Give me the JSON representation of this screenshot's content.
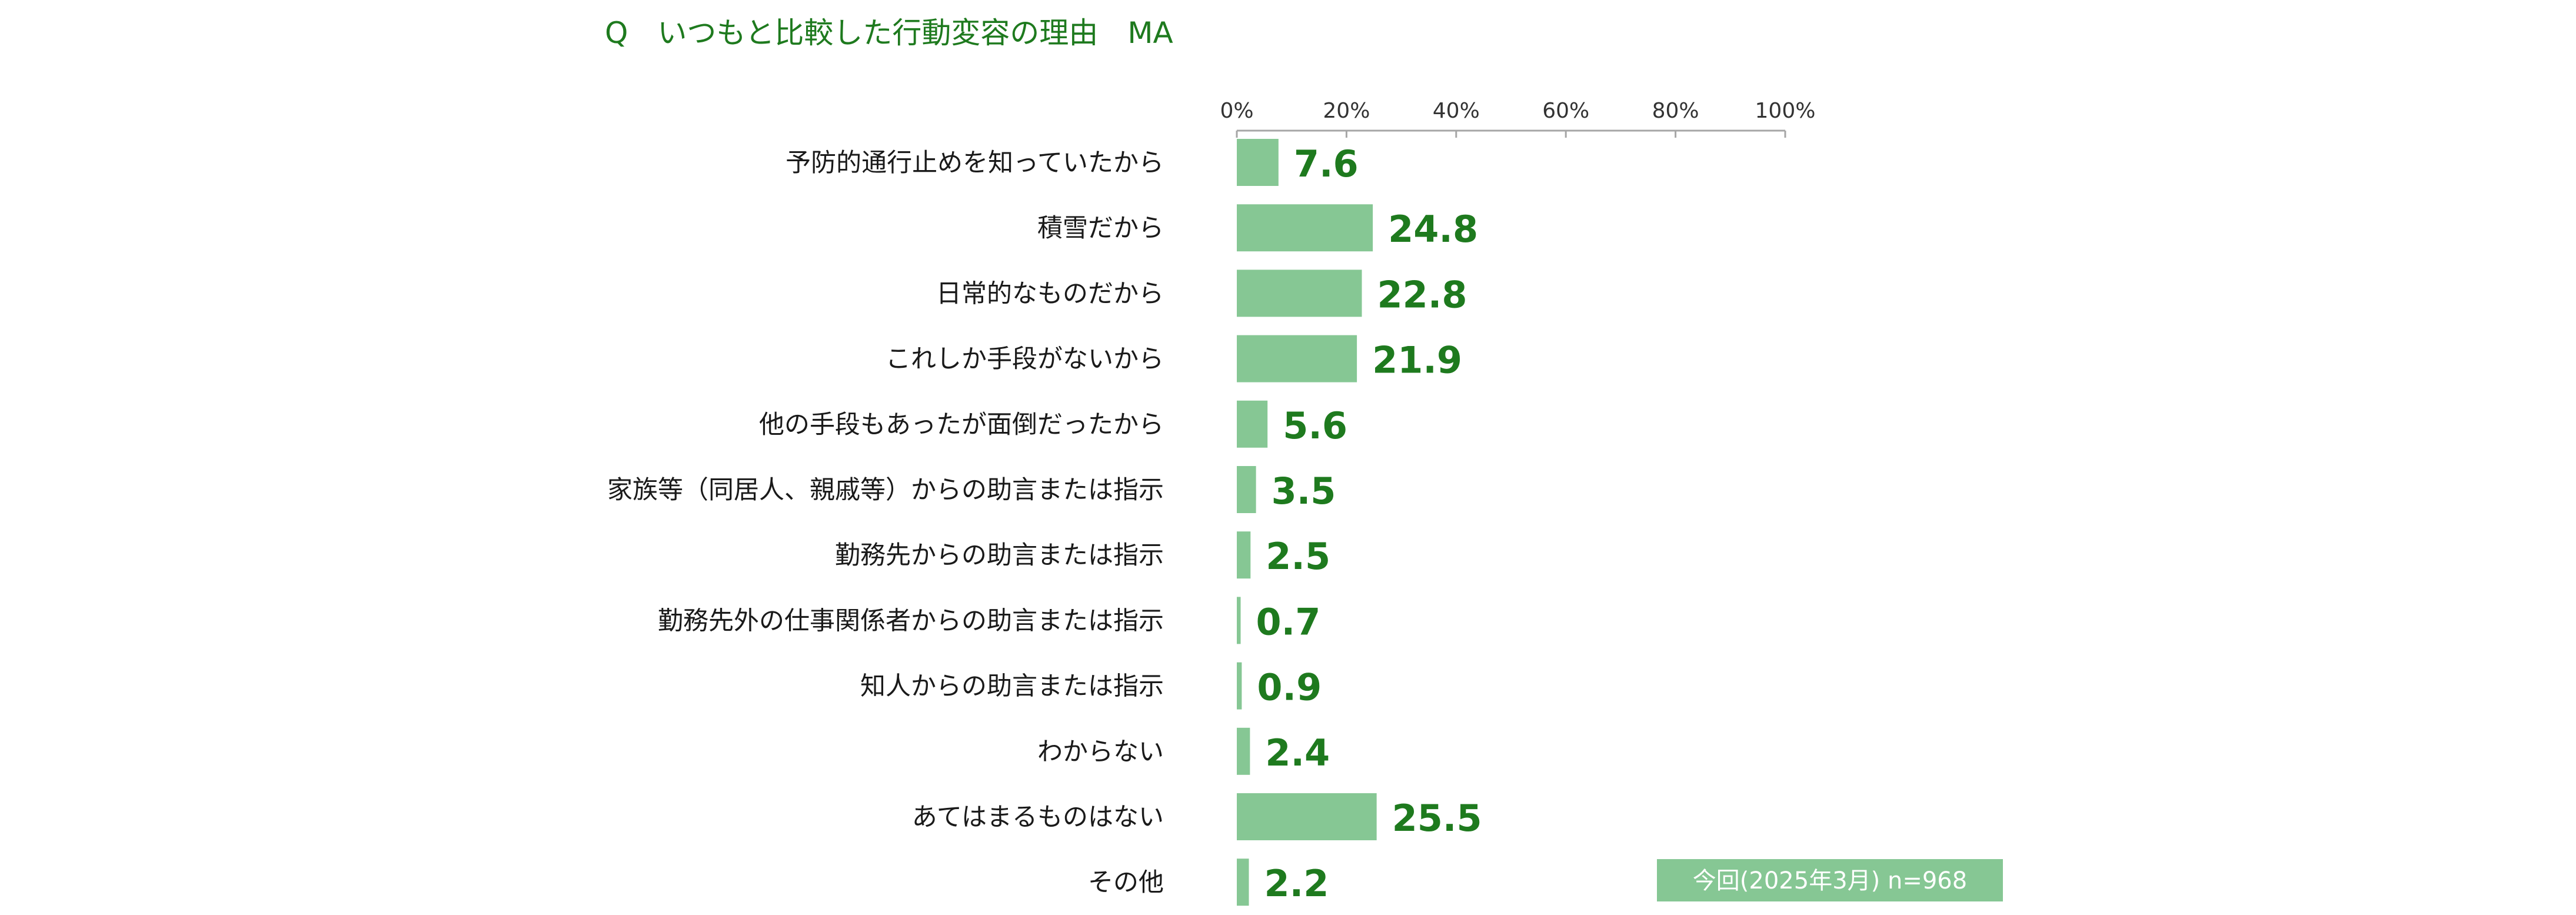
{
  "chart_data": {
    "type": "bar",
    "orientation": "horizontal",
    "title": "Q　いつもと比較した行動変容の理由　MA",
    "categories": [
      "予防的通行止めを知っていたから",
      "積雪だから",
      "日常的なものだから",
      "これしか手段がないから",
      "他の手段もあったが面倒だったから",
      "家族等（同居人、親戚等）からの助言または指示",
      "勤務先からの助言または指示",
      "勤務先外の仕事関係者からの助言または指示",
      "知人からの助言または指示",
      "わからない",
      "あてはまるものはない",
      "その他"
    ],
    "series": [
      {
        "name": "今回(2025年3月) n=968",
        "values": [
          7.6,
          24.8,
          22.8,
          21.9,
          5.6,
          3.5,
          2.5,
          0.7,
          0.9,
          2.4,
          25.5,
          2.2
        ]
      }
    ],
    "value_labels": [
      "7.6",
      "24.8",
      "22.8",
      "21.9",
      "5.6",
      "3.5",
      "2.5",
      "0.7",
      "0.9",
      "2.4",
      "25.5",
      "2.2"
    ],
    "x_ticks": [
      "0%",
      "20%",
      "40%",
      "60%",
      "80%",
      "100%"
    ],
    "xlim": [
      0,
      100
    ],
    "axis_position": "top",
    "grid": false,
    "legend_position": "bottom-right",
    "colors": {
      "bar": "#86c794",
      "value_label": "#1e7a1e",
      "title": "#1e7a1e",
      "legend_bg": "#86c794",
      "legend_text": "#ffffff",
      "axis": "#a6a6a6",
      "category_text": "#1a1a1a",
      "tick_text": "#333333"
    }
  }
}
